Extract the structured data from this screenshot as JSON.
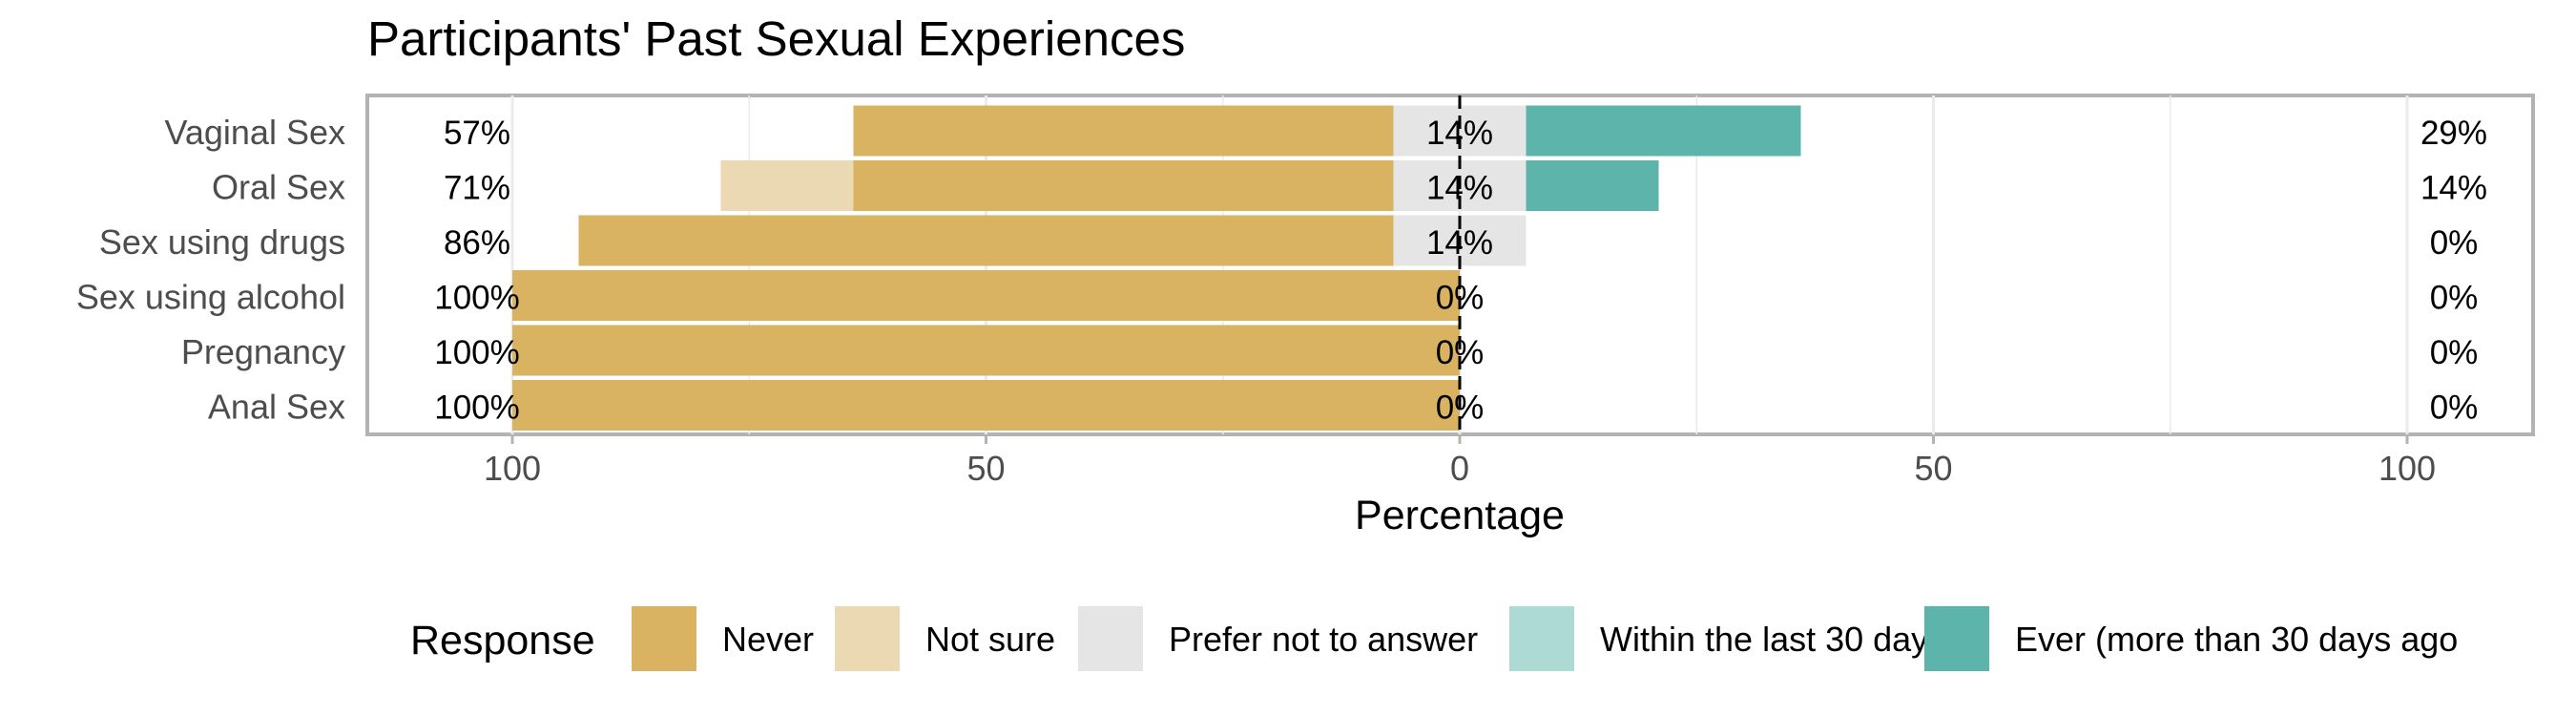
{
  "chart_data": {
    "type": "bar",
    "orientation": "horizontal",
    "stacking": "diverging",
    "title": "Participants' Past Sexual Experiences",
    "xlabel": "Percentage",
    "xlim": [
      -100,
      100
    ],
    "x_ticks": [
      {
        "value": -100,
        "label": "100"
      },
      {
        "value": -50,
        "label": "50"
      },
      {
        "value": 0,
        "label": "0"
      },
      {
        "value": 50,
        "label": "50"
      },
      {
        "value": 100,
        "label": "100"
      }
    ],
    "categories": [
      "Vaginal Sex",
      "Oral Sex",
      "Sex using drugs",
      "Sex using alcohol",
      "Pregnancy",
      "Anal Sex"
    ],
    "series": [
      {
        "name": "Never",
        "color": "#D9B262",
        "side": "negative",
        "values": [
          57,
          57,
          86,
          100,
          100,
          100
        ]
      },
      {
        "name": "Not sure",
        "color": "#EBD9B3",
        "side": "negative",
        "values": [
          0,
          14,
          0,
          0,
          0,
          0
        ]
      },
      {
        "name": "Prefer not to answer",
        "color": "#E5E5E5",
        "side": "center",
        "values": [
          14,
          14,
          14,
          0,
          0,
          0
        ]
      },
      {
        "name": "Within the last 30 days",
        "color": "#AEDAD5",
        "side": "positive",
        "values": [
          0,
          0,
          0,
          0,
          0,
          0
        ]
      },
      {
        "name": "Ever (more than 30 days ago",
        "color": "#5DB4AB",
        "side": "positive",
        "values": [
          29,
          14,
          0,
          0,
          0,
          0
        ]
      }
    ],
    "left_labels": [
      "57%",
      "71%",
      "86%",
      "100%",
      "100%",
      "100%"
    ],
    "center_labels": [
      "14%",
      "14%",
      "14%",
      "0%",
      "0%",
      "0%"
    ],
    "right_labels": [
      "29%",
      "14%",
      "0%",
      "0%",
      "0%",
      "0%"
    ],
    "legend": {
      "title": "Response",
      "position": "bottom",
      "items": [
        "Never",
        "Not sure",
        "Prefer not to answer",
        "Within the last 30 days",
        "Ever (more than 30 days ago"
      ]
    },
    "grid": true
  }
}
